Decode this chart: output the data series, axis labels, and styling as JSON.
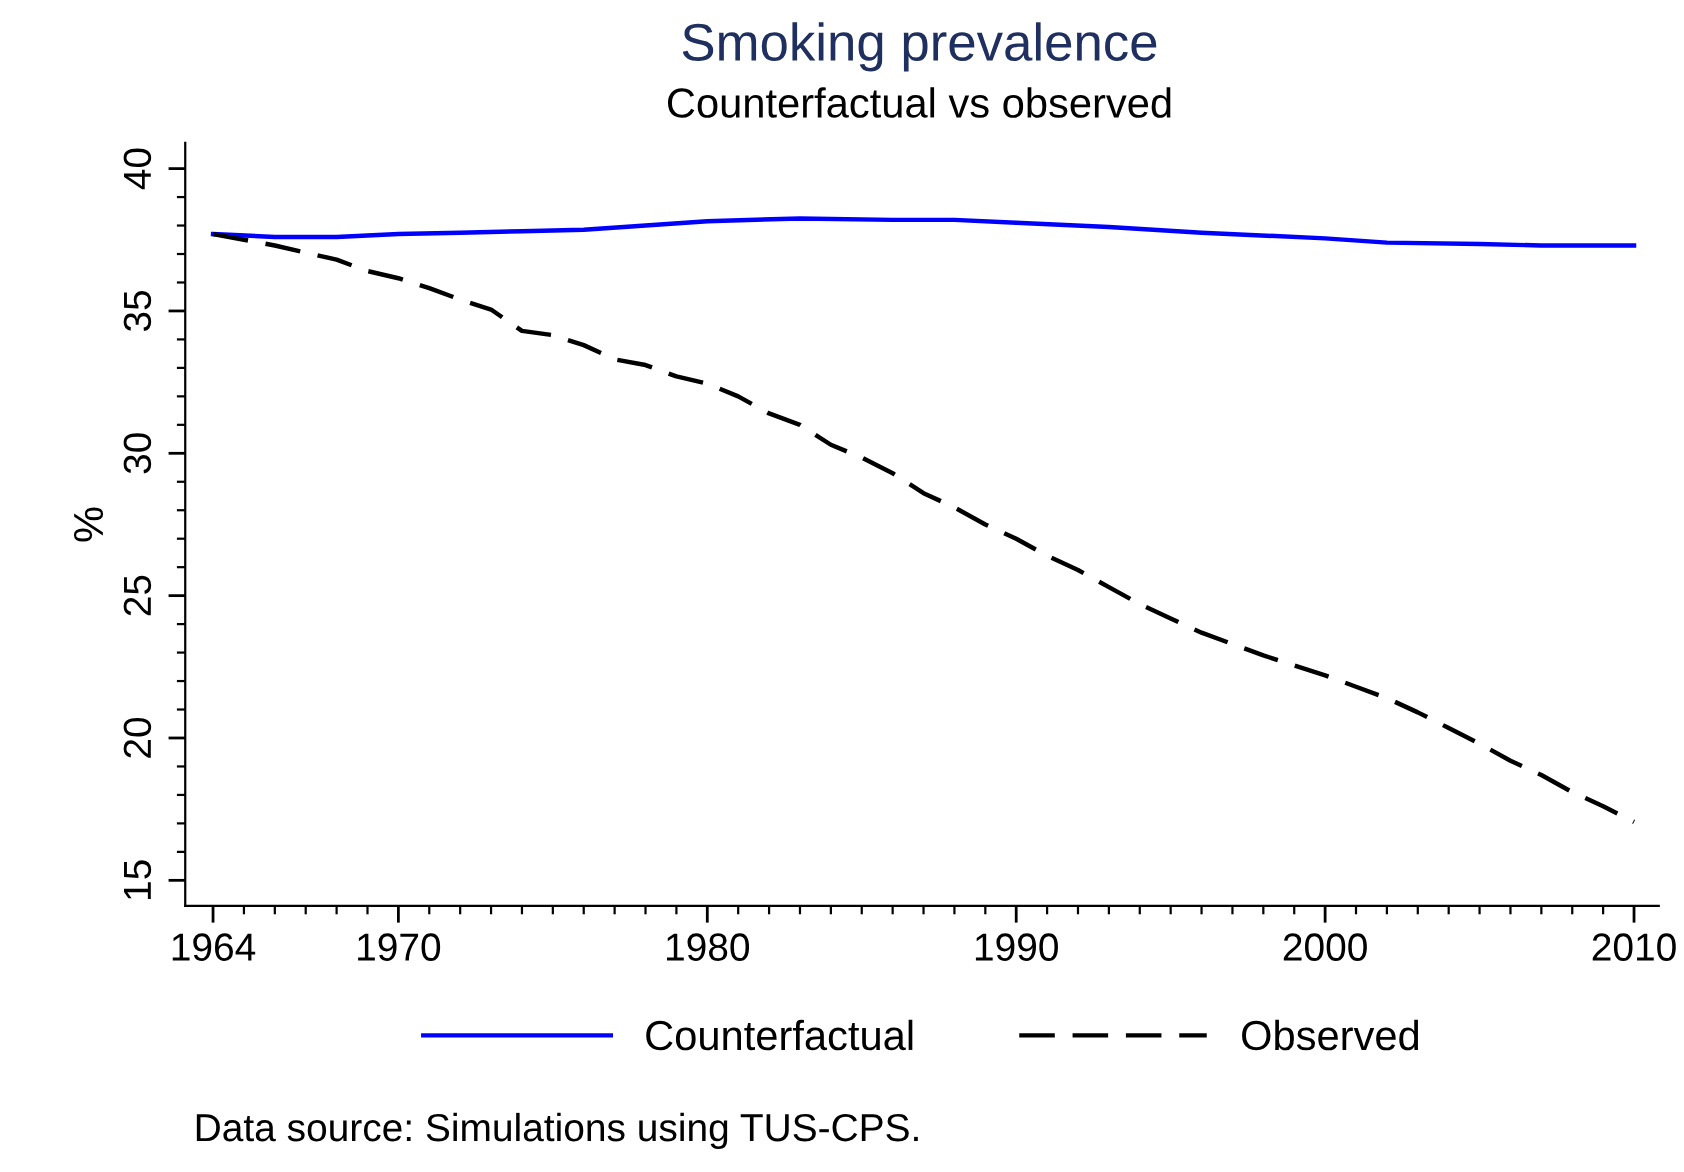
{
  "chart_data": {
    "type": "line",
    "title": "Smoking prevalence",
    "subtitle": "Counterfactual vs observed",
    "ylabel": "%",
    "annotations": [
      "Data source: Simulations using TUS-CPS."
    ],
    "xlim": [
      1963.1,
      2010.8
    ],
    "ylim": [
      14.1,
      40.9
    ],
    "xticks": [
      1964,
      {
        "value": 1965,
        "label": null
      },
      {
        "value": 1966,
        "label": null
      },
      {
        "value": 1967,
        "label": null
      },
      {
        "value": 1968,
        "label": null
      },
      {
        "value": 1969,
        "label": null
      },
      1970,
      {
        "value": 1971,
        "label": null
      },
      {
        "value": 1972,
        "label": null
      },
      {
        "value": 1973,
        "label": null
      },
      {
        "value": 1974,
        "label": null
      },
      {
        "value": 1975,
        "label": null
      },
      {
        "value": 1976,
        "label": null
      },
      {
        "value": 1977,
        "label": null
      },
      {
        "value": 1978,
        "label": null
      },
      {
        "value": 1979,
        "label": null
      },
      1980,
      {
        "value": 1981,
        "label": null
      },
      {
        "value": 1982,
        "label": null
      },
      {
        "value": 1983,
        "label": null
      },
      {
        "value": 1984,
        "label": null
      },
      {
        "value": 1985,
        "label": null
      },
      {
        "value": 1986,
        "label": null
      },
      {
        "value": 1987,
        "label": null
      },
      {
        "value": 1988,
        "label": null
      },
      {
        "value": 1989,
        "label": null
      },
      1990,
      {
        "value": 1991,
        "label": null
      },
      {
        "value": 1992,
        "label": null
      },
      {
        "value": 1993,
        "label": null
      },
      {
        "value": 1994,
        "label": null
      },
      {
        "value": 1995,
        "label": null
      },
      {
        "value": 1996,
        "label": null
      },
      {
        "value": 1997,
        "label": null
      },
      {
        "value": 1998,
        "label": null
      },
      {
        "value": 1999,
        "label": null
      },
      2000,
      {
        "value": 2001,
        "label": null
      },
      {
        "value": 2002,
        "label": null
      },
      {
        "value": 2003,
        "label": null
      },
      {
        "value": 2004,
        "label": null
      },
      {
        "value": 2005,
        "label": null
      },
      {
        "value": 2006,
        "label": null
      },
      {
        "value": 2007,
        "label": null
      },
      {
        "value": 2008,
        "label": null
      },
      {
        "value": 2009,
        "label": null
      },
      2010
    ],
    "yticks": [
      15,
      {
        "value": 16,
        "label": null
      },
      {
        "value": 17,
        "label": null
      },
      {
        "value": 18,
        "label": null
      },
      {
        "value": 19,
        "label": null
      },
      20,
      {
        "value": 21,
        "label": null
      },
      {
        "value": 22,
        "label": null
      },
      {
        "value": 23,
        "label": null
      },
      {
        "value": 24,
        "label": null
      },
      25,
      {
        "value": 26,
        "label": null
      },
      {
        "value": 27,
        "label": null
      },
      {
        "value": 28,
        "label": null
      },
      {
        "value": 29,
        "label": null
      },
      30,
      {
        "value": 31,
        "label": null
      },
      {
        "value": 32,
        "label": null
      },
      {
        "value": 33,
        "label": null
      },
      {
        "value": 34,
        "label": null
      },
      35,
      {
        "value": 36,
        "label": null
      },
      {
        "value": 37,
        "label": null
      },
      {
        "value": 38,
        "label": null
      },
      {
        "value": 39,
        "label": null
      },
      40
    ],
    "grid": false,
    "legend": "bottom",
    "series": [
      {
        "name": "Counterfactual",
        "color": "#0000ff",
        "line_style": "solid",
        "x": [
          1964,
          1966,
          1968,
          1970,
          1972,
          1974,
          1976,
          1978,
          1980,
          1983,
          1986,
          1988,
          1990,
          1993,
          1996,
          2000,
          2002,
          2005,
          2007,
          2010
        ],
        "values": [
          37.7,
          37.6,
          37.6,
          37.7,
          37.75,
          37.8,
          37.85,
          38.0,
          38.15,
          38.25,
          38.2,
          38.2,
          38.1,
          37.95,
          37.75,
          37.55,
          37.4,
          37.35,
          37.3,
          37.3
        ]
      },
      {
        "name": "Observed",
        "color": "#000000",
        "line_style": "dashed",
        "x": [
          1964,
          1966,
          1967,
          1968,
          1969,
          1970,
          1971,
          1972,
          1973,
          1974,
          1975,
          1976,
          1977,
          1978,
          1979,
          1980,
          1981,
          1982,
          1983,
          1984,
          1985,
          1986,
          1987,
          1988,
          1989,
          1990,
          1991,
          1992,
          1993,
          1994,
          1995,
          1996,
          1997,
          1998,
          1999,
          2000,
          2001,
          2002,
          2003,
          2004,
          2005,
          2006,
          2007,
          2008,
          2009,
          2010
        ],
        "values": [
          37.7,
          37.3,
          37.05,
          36.8,
          36.4,
          36.15,
          35.8,
          35.4,
          35.05,
          34.3,
          34.15,
          33.8,
          33.3,
          33.1,
          32.7,
          32.45,
          32.0,
          31.4,
          31.0,
          30.3,
          29.85,
          29.3,
          28.6,
          28.1,
          27.5,
          27.0,
          26.4,
          25.9,
          25.3,
          24.7,
          24.2,
          23.7,
          23.3,
          22.9,
          22.55,
          22.2,
          21.8,
          21.4,
          20.9,
          20.35,
          19.8,
          19.2,
          18.7,
          18.1,
          17.6,
          17.05
        ]
      }
    ]
  }
}
